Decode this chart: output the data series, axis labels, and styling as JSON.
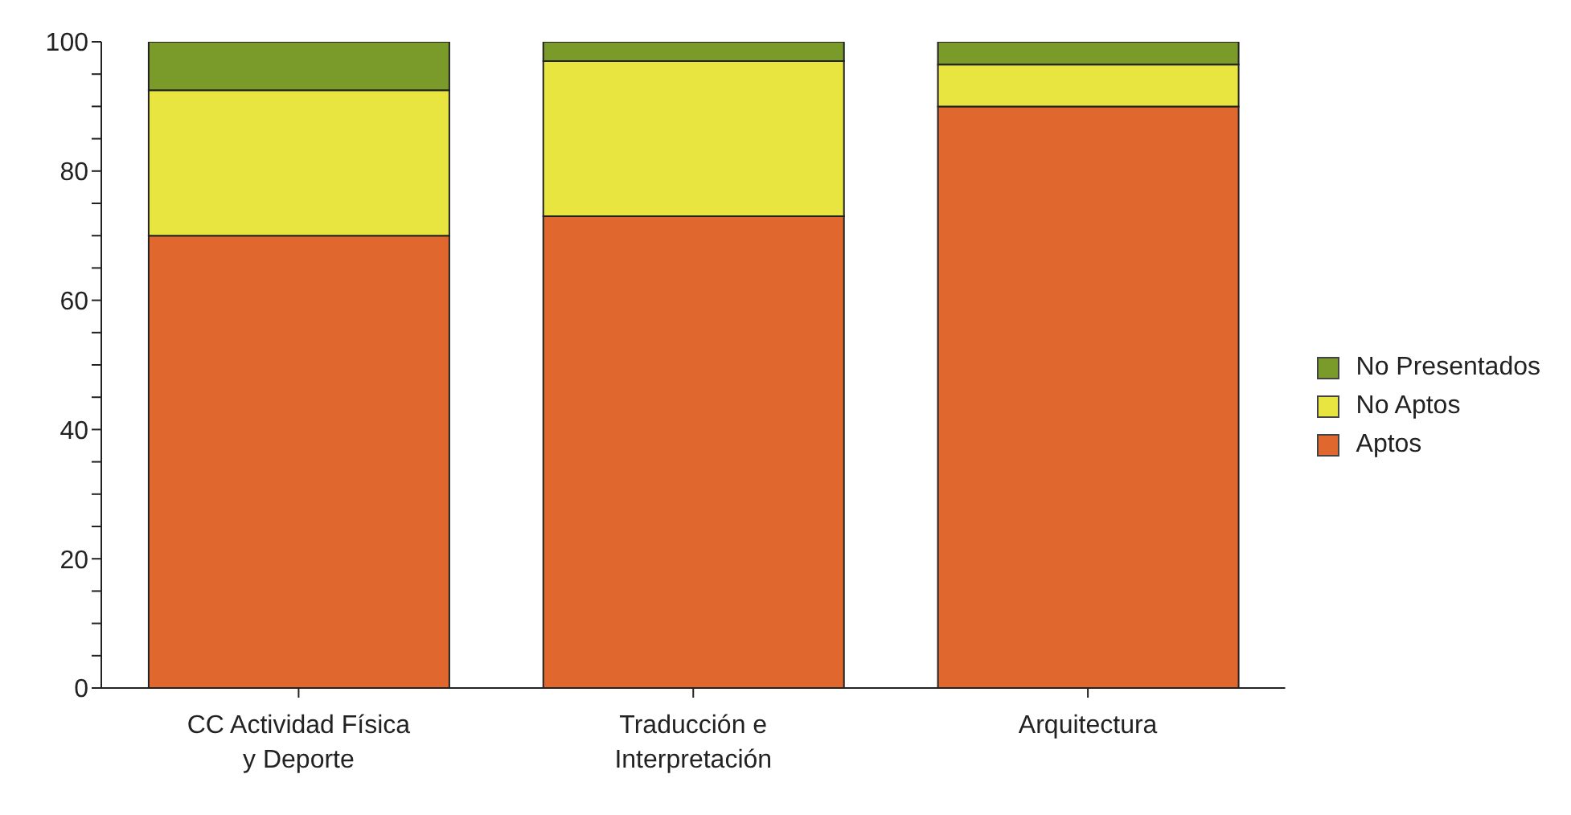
{
  "chart_data": {
    "type": "bar",
    "stacked": true,
    "categories": [
      "CC Actividad Física y Deporte",
      "Traducción e Interpretación",
      "Arquitectura"
    ],
    "series": [
      {
        "name": "Aptos",
        "color": "#e0682e",
        "values": [
          70,
          73,
          90
        ]
      },
      {
        "name": "No Aptos",
        "color": "#e8e440",
        "values": [
          22.5,
          24,
          6.5
        ]
      },
      {
        "name": "No Presentados",
        "color": "#7a9a2a",
        "values": [
          7.5,
          3,
          3.5
        ]
      }
    ],
    "ylim": [
      0,
      100
    ],
    "yticks": [
      0,
      {
        "value": 5,
        "label": null
      },
      {
        "value": 10,
        "label": null
      },
      {
        "value": 15,
        "label": null
      },
      20,
      {
        "value": 25,
        "label": null
      },
      {
        "value": 30,
        "label": null
      },
      {
        "value": 35,
        "label": null
      },
      40,
      {
        "value": 45,
        "label": null
      },
      {
        "value": 50,
        "label": null
      },
      {
        "value": 55,
        "label": null
      },
      60,
      {
        "value": 65,
        "label": null
      },
      {
        "value": 70,
        "label": null
      },
      {
        "value": 75,
        "label": null
      },
      80,
      {
        "value": 85,
        "label": null
      },
      {
        "value": 90,
        "label": null
      },
      {
        "value": 95,
        "label": null
      },
      100
    ],
    "grid": false,
    "legend": "right"
  }
}
